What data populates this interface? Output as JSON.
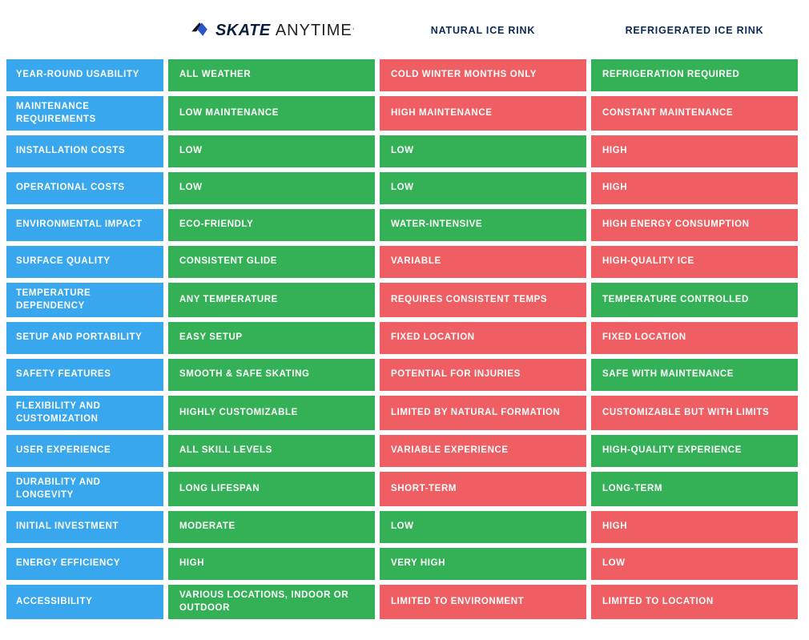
{
  "colors": {
    "label_bg": "#39a7ed",
    "green": "#34b157",
    "red": "#ef5e63",
    "header_text": "#0a2a55",
    "logo_dark": "#0a1e3f",
    "logo_blue": "#2a56c6",
    "background": "#ffffff"
  },
  "logo": {
    "word1": "SKATE",
    "word2": "ANYTIME",
    "dot": "."
  },
  "columns": {
    "skate": "SKATE ANYTIME",
    "natural": "NATURAL ICE RINK",
    "refrigerated": "REFRIGERATED ICE RINK"
  },
  "rows": [
    {
      "label": "YEAR-ROUND USABILITY",
      "cells": [
        {
          "text": "ALL WEATHER",
          "state": "green"
        },
        {
          "text": "COLD WINTER MONTHS ONLY",
          "state": "red"
        },
        {
          "text": "REFRIGERATION REQUIRED",
          "state": "green"
        }
      ]
    },
    {
      "label": "MAINTENANCE REQUIREMENTS",
      "cells": [
        {
          "text": "LOW MAINTENANCE",
          "state": "green"
        },
        {
          "text": "HIGH MAINTENANCE",
          "state": "red"
        },
        {
          "text": "CONSTANT MAINTENANCE",
          "state": "red"
        }
      ]
    },
    {
      "label": "INSTALLATION COSTS",
      "cells": [
        {
          "text": "LOW",
          "state": "green"
        },
        {
          "text": "LOW",
          "state": "green"
        },
        {
          "text": "HIGH",
          "state": "red"
        }
      ]
    },
    {
      "label": "OPERATIONAL COSTS",
      "cells": [
        {
          "text": "LOW",
          "state": "green"
        },
        {
          "text": "LOW",
          "state": "green"
        },
        {
          "text": "HIGH",
          "state": "red"
        }
      ]
    },
    {
      "label": "ENVIRONMENTAL IMPACT",
      "cells": [
        {
          "text": "ECO-FRIENDLY",
          "state": "green"
        },
        {
          "text": "WATER-INTENSIVE",
          "state": "green"
        },
        {
          "text": "HIGH ENERGY CONSUMPTION",
          "state": "red"
        }
      ]
    },
    {
      "label": "SURFACE QUALITY",
      "cells": [
        {
          "text": "CONSISTENT GLIDE",
          "state": "green"
        },
        {
          "text": "VARIABLE",
          "state": "red"
        },
        {
          "text": "HIGH-QUALITY ICE",
          "state": "red"
        }
      ]
    },
    {
      "label": "TEMPERATURE DEPENDENCY",
      "cells": [
        {
          "text": "ANY TEMPERATURE",
          "state": "green"
        },
        {
          "text": "REQUIRES CONSISTENT TEMPS",
          "state": "red"
        },
        {
          "text": "TEMPERATURE CONTROLLED",
          "state": "green"
        }
      ]
    },
    {
      "label": "SETUP AND PORTABILITY",
      "cells": [
        {
          "text": "EASY SETUP",
          "state": "green"
        },
        {
          "text": "FIXED LOCATION",
          "state": "red"
        },
        {
          "text": "FIXED LOCATION",
          "state": "red"
        }
      ]
    },
    {
      "label": "SAFETY FEATURES",
      "cells": [
        {
          "text": "SMOOTH & SAFE SKATING",
          "state": "green"
        },
        {
          "text": "POTENTIAL FOR INJURIES",
          "state": "red"
        },
        {
          "text": "SAFE WITH MAINTENANCE",
          "state": "green"
        }
      ]
    },
    {
      "label": "FLEXIBILITY AND CUSTOMIZATION",
      "cells": [
        {
          "text": "HIGHLY CUSTOMIZABLE",
          "state": "green"
        },
        {
          "text": "LIMITED BY NATURAL FORMATION",
          "state": "red"
        },
        {
          "text": "CUSTOMIZABLE BUT WITH LIMITS",
          "state": "red"
        }
      ]
    },
    {
      "label": "USER EXPERIENCE",
      "cells": [
        {
          "text": "ALL SKILL LEVELS",
          "state": "green"
        },
        {
          "text": "VARIABLE EXPERIENCE",
          "state": "red"
        },
        {
          "text": "HIGH-QUALITY EXPERIENCE",
          "state": "green"
        }
      ]
    },
    {
      "label": "DURABILITY AND LONGEVITY",
      "cells": [
        {
          "text": "LONG LIFESPAN",
          "state": "green"
        },
        {
          "text": "SHORT-TERM",
          "state": "red"
        },
        {
          "text": "LONG-TERM",
          "state": "green"
        }
      ]
    },
    {
      "label": "INITIAL INVESTMENT",
      "cells": [
        {
          "text": "MODERATE",
          "state": "green"
        },
        {
          "text": "LOW",
          "state": "green"
        },
        {
          "text": "HIGH",
          "state": "red"
        }
      ]
    },
    {
      "label": "ENERGY EFFICIENCY",
      "cells": [
        {
          "text": "HIGH",
          "state": "green"
        },
        {
          "text": "VERY HIGH",
          "state": "green"
        },
        {
          "text": "LOW",
          "state": "red"
        }
      ]
    },
    {
      "label": "ACCESSIBILITY",
      "cells": [
        {
          "text": "VARIOUS LOCATIONS, INDOOR OR OUTDOOR",
          "state": "green"
        },
        {
          "text": "LIMITED TO ENVIRONMENT",
          "state": "red"
        },
        {
          "text": "LIMITED TO LOCATION",
          "state": "red"
        }
      ]
    }
  ]
}
